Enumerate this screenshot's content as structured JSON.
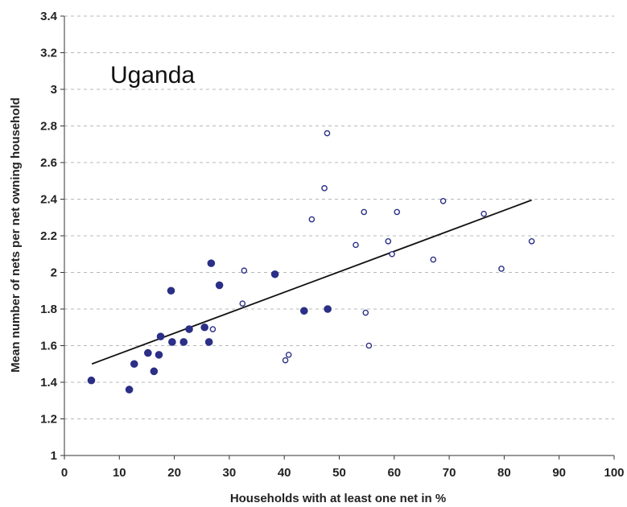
{
  "chart_data": {
    "type": "scatter",
    "annotation": "Uganda",
    "xlabel": "Households with at least one net in %",
    "ylabel": "Mean  number of nets per net owning household",
    "xlim": [
      0,
      100
    ],
    "ylim": [
      1,
      3.4
    ],
    "xticks": [
      0,
      10,
      20,
      30,
      40,
      50,
      60,
      70,
      80,
      90,
      100
    ],
    "yticks": [
      1,
      1.2,
      1.4,
      1.6,
      1.8,
      2,
      2.2,
      2.4,
      2.6,
      2.8,
      3,
      3.2,
      3.4
    ],
    "grid": "horizontal dashed",
    "marker_color": "#2b2f86",
    "series": [
      {
        "marker": "filled",
        "points": [
          [
            4.9,
            1.41
          ],
          [
            11.8,
            1.36
          ],
          [
            12.7,
            1.5
          ],
          [
            15.2,
            1.56
          ],
          [
            16.3,
            1.46
          ],
          [
            17.2,
            1.55
          ],
          [
            17.5,
            1.65
          ],
          [
            19.4,
            1.9
          ],
          [
            19.6,
            1.62
          ],
          [
            21.7,
            1.62
          ],
          [
            22.7,
            1.69
          ],
          [
            25.5,
            1.7
          ],
          [
            26.3,
            1.62
          ],
          [
            26.7,
            2.05
          ],
          [
            28.2,
            1.93
          ],
          [
            38.3,
            1.99
          ],
          [
            43.6,
            1.79
          ],
          [
            47.9,
            1.8
          ]
        ]
      },
      {
        "marker": "open",
        "points": [
          [
            27.0,
            1.69
          ],
          [
            32.4,
            1.83
          ],
          [
            32.7,
            2.01
          ],
          [
            40.2,
            1.52
          ],
          [
            40.8,
            1.55
          ],
          [
            45.0,
            2.29
          ],
          [
            47.3,
            2.46
          ],
          [
            47.8,
            2.76
          ],
          [
            53.0,
            2.15
          ],
          [
            54.5,
            2.33
          ],
          [
            54.8,
            1.78
          ],
          [
            55.4,
            1.6
          ],
          [
            58.9,
            2.17
          ],
          [
            59.6,
            2.1
          ],
          [
            60.5,
            2.33
          ],
          [
            67.1,
            2.07
          ],
          [
            68.9,
            2.39
          ],
          [
            76.3,
            2.32
          ],
          [
            79.5,
            2.02
          ],
          [
            85.0,
            2.17
          ]
        ]
      }
    ],
    "trendline": {
      "x": [
        5,
        85
      ],
      "y": [
        1.5,
        2.395
      ]
    }
  }
}
